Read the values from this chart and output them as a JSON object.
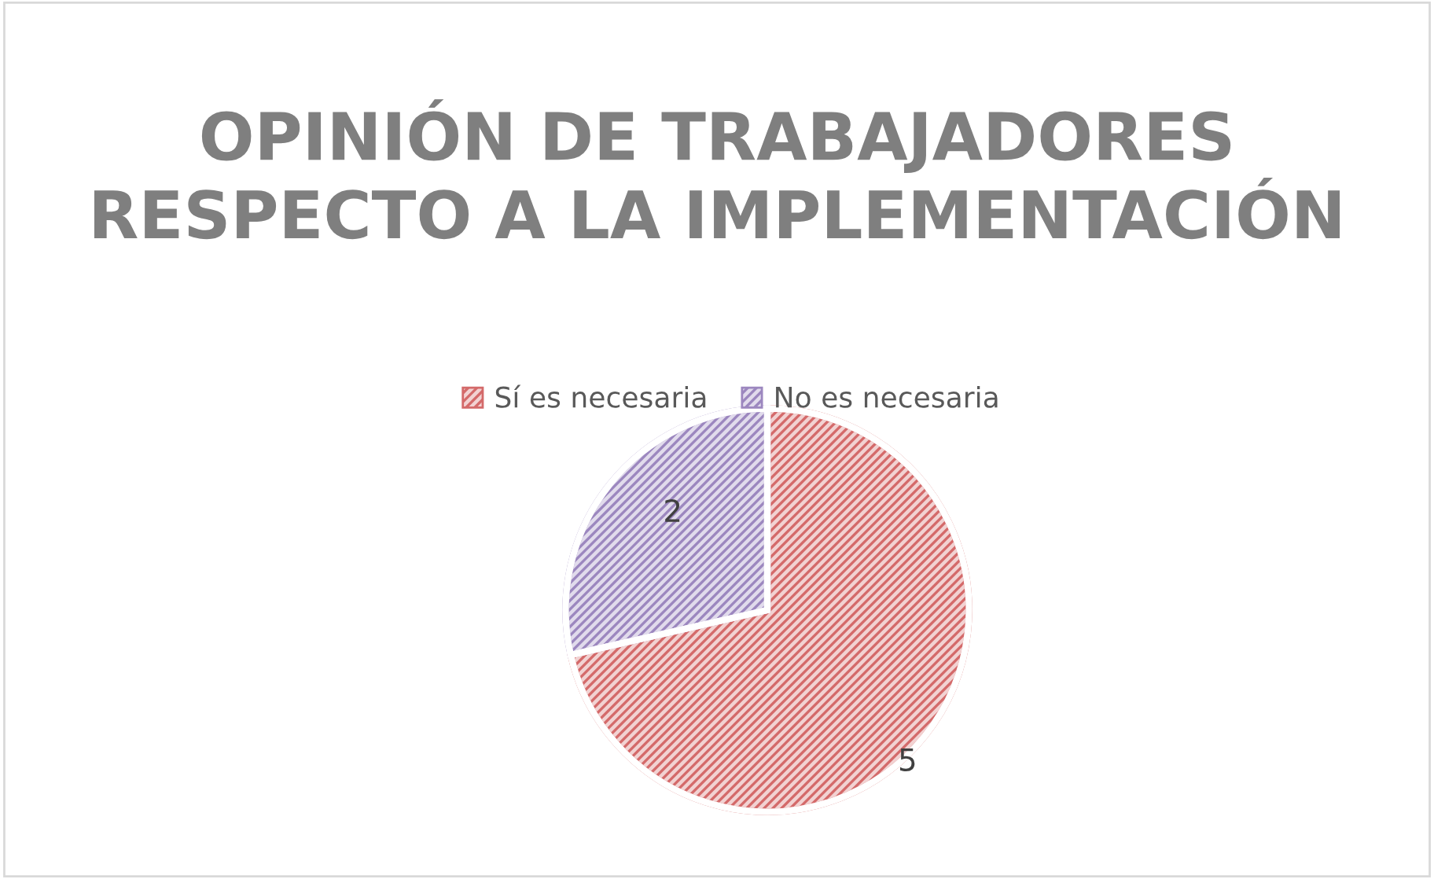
{
  "chart_data": {
    "type": "pie",
    "title": "OPINIÓN DE TRABAJADORES RESPECTO A LA IMPLEMENTACIÓN",
    "categories": [
      "Sí es necesaria",
      "No es necesaria"
    ],
    "values": [
      5,
      2
    ],
    "colors": [
      "#d46a6a",
      "#9c87bf"
    ],
    "data_labels": true,
    "legend": "top"
  }
}
